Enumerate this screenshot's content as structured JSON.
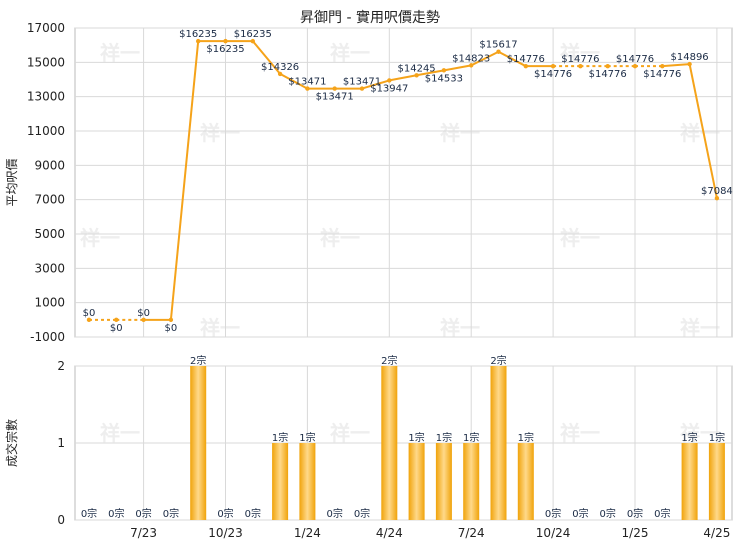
{
  "colors": {
    "line": "#f5a31a",
    "bar_light": "#ffd98a",
    "bar_dark": "#f0a30a",
    "grid": "#d9d9d9",
    "border": "#bbbbbb"
  },
  "watermark_text": "祥一",
  "chart_data": [
    {
      "type": "line",
      "title": "昇御門 - 實用呎價走勢",
      "ylabel": "平均呎價",
      "ylim": [
        -1000,
        17000
      ],
      "yticks": [
        -1000,
        1000,
        3000,
        5000,
        7000,
        9000,
        11000,
        13000,
        15000,
        17000
      ],
      "xtick_labels": [
        "7/23",
        "10/23",
        "1/24",
        "4/24",
        "7/24",
        "10/24",
        "1/25",
        "4/25"
      ],
      "x": [
        "5/23",
        "6/23",
        "7/23",
        "8/23",
        "9/23",
        "10/23",
        "11/23",
        "12/23",
        "1/24",
        "2/24",
        "3/24",
        "4/24",
        "5/24",
        "6/24",
        "7/24",
        "8/24",
        "9/24",
        "10/24",
        "11/24",
        "12/24",
        "1/25",
        "2/25",
        "3/25",
        "4/25"
      ],
      "values": [
        0,
        0,
        0,
        0,
        16235,
        16235,
        16235,
        14326,
        13471,
        13471,
        13471,
        13947,
        14245,
        14533,
        14823,
        15617,
        14776,
        14776,
        14776,
        14776,
        14776,
        14776,
        14896,
        7084
      ],
      "interpolated": [
        true,
        true,
        true,
        false,
        false,
        true,
        false,
        false,
        false,
        true,
        false,
        false,
        false,
        false,
        false,
        false,
        false,
        true,
        true,
        true,
        true,
        true,
        false,
        false
      ],
      "labels": [
        "$0",
        "$0",
        "$0",
        "$0",
        "$16235",
        "$16235",
        "$16235",
        "$14326",
        "$13471",
        "$13471",
        "$13471",
        "$13947",
        "$14245",
        "$14533",
        "$14823",
        "$15617",
        "$14776",
        "$14776",
        "$14776",
        "$14776",
        "$14776",
        "$14776",
        "$14896",
        "$7084"
      ],
      "label_pos": [
        "above",
        "below",
        "above",
        "below",
        "above",
        "below",
        "above",
        "above",
        "above",
        "below",
        "above",
        "below",
        "above",
        "below",
        "above",
        "above",
        "above",
        "below",
        "above",
        "below",
        "above",
        "below",
        "above",
        "above"
      ]
    },
    {
      "type": "bar",
      "ylabel": "成交宗數",
      "ylim": [
        0,
        2
      ],
      "yticks": [
        0,
        1,
        2
      ],
      "xtick_labels": [
        "7/23",
        "10/23",
        "1/24",
        "4/24",
        "7/24",
        "10/24",
        "1/25",
        "4/25"
      ],
      "x": [
        "5/23",
        "6/23",
        "7/23",
        "8/23",
        "9/23",
        "10/23",
        "11/23",
        "12/23",
        "1/24",
        "2/24",
        "3/24",
        "4/24",
        "5/24",
        "6/24",
        "7/24",
        "8/24",
        "9/24",
        "10/24",
        "11/24",
        "12/24",
        "1/25",
        "2/25",
        "3/25",
        "4/25"
      ],
      "values": [
        0,
        0,
        0,
        0,
        2,
        0,
        0,
        1,
        1,
        0,
        0,
        2,
        1,
        1,
        1,
        2,
        1,
        0,
        0,
        0,
        0,
        0,
        1,
        1
      ],
      "labels": [
        "0宗",
        "0宗",
        "0宗",
        "0宗",
        "2宗",
        "0宗",
        "0宗",
        "1宗",
        "1宗",
        "0宗",
        "0宗",
        "2宗",
        "1宗",
        "1宗",
        "1宗",
        "2宗",
        "1宗",
        "0宗",
        "0宗",
        "0宗",
        "0宗",
        "0宗",
        "1宗",
        "1宗"
      ]
    }
  ]
}
